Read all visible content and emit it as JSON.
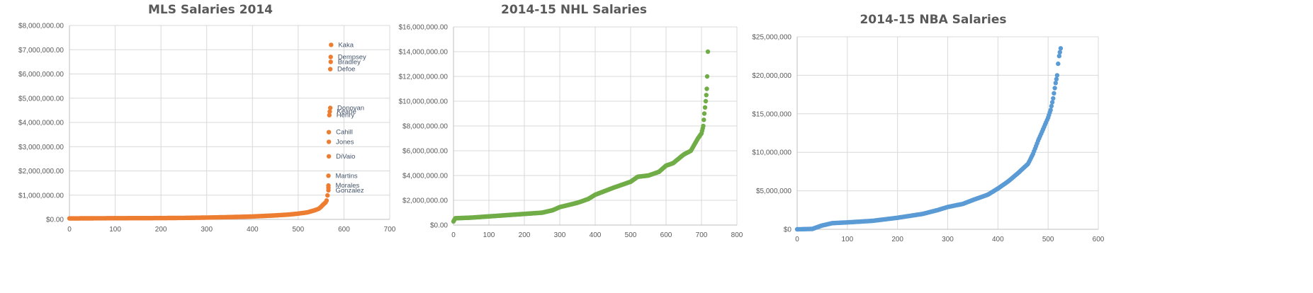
{
  "chart_data": [
    {
      "type": "scatter",
      "title": "MLS Salaries 2014",
      "xlabel": "",
      "ylabel": "",
      "xlim": [
        0,
        700
      ],
      "ylim": [
        0,
        8000000
      ],
      "x_ticks": [
        "0",
        "100",
        "200",
        "300",
        "400",
        "500",
        "600",
        "700"
      ],
      "y_ticks": [
        "$0.00",
        "$1,000,000.00",
        "$2,000,000.00",
        "$3,000,000.00",
        "$4,000,000.00",
        "$5,000,000.00",
        "$6,000,000.00",
        "$7,000,000.00",
        "$8,000,000.00"
      ],
      "grid": true,
      "color": "#ed7d31",
      "points": [
        [
          0,
          40000
        ],
        [
          50,
          45000
        ],
        [
          100,
          50000
        ],
        [
          150,
          52000
        ],
        [
          200,
          55000
        ],
        [
          250,
          62000
        ],
        [
          300,
          75000
        ],
        [
          350,
          95000
        ],
        [
          400,
          120000
        ],
        [
          450,
          165000
        ],
        [
          480,
          200000
        ],
        [
          500,
          240000
        ],
        [
          520,
          290000
        ],
        [
          535,
          370000
        ],
        [
          545,
          440000
        ],
        [
          550,
          520000
        ],
        [
          555,
          620000
        ],
        [
          560,
          700000
        ],
        [
          562,
          780000
        ],
        [
          566,
          1200000
        ],
        [
          566,
          1300000
        ],
        [
          566,
          1400000
        ],
        [
          566,
          1800000
        ],
        [
          567,
          2600000
        ],
        [
          567,
          3200000
        ],
        [
          567,
          3600000
        ],
        [
          568,
          4300000
        ],
        [
          569,
          4450000
        ],
        [
          570,
          4600000
        ],
        [
          570,
          6200000
        ],
        [
          571,
          6500000
        ],
        [
          571,
          6700000
        ],
        [
          572,
          7200000
        ]
      ],
      "annotations": [
        {
          "label": "Kaka",
          "x": 572,
          "y": 7200000
        },
        {
          "label": "Dempsey",
          "x": 571,
          "y": 6700000
        },
        {
          "label": "Bradley",
          "x": 571,
          "y": 6500000
        },
        {
          "label": "Defoe",
          "x": 570,
          "y": 6200000
        },
        {
          "label": "Donovan",
          "x": 570,
          "y": 4600000
        },
        {
          "label": "Keane",
          "x": 569,
          "y": 4450000
        },
        {
          "label": "Henry",
          "x": 568,
          "y": 4300000
        },
        {
          "label": "Cahill",
          "x": 567,
          "y": 3600000
        },
        {
          "label": "Jones",
          "x": 567,
          "y": 3200000
        },
        {
          "label": "DiVaio",
          "x": 567,
          "y": 2600000
        },
        {
          "label": "Martins",
          "x": 566,
          "y": 1800000
        },
        {
          "label": "Morales",
          "x": 566,
          "y": 1400000
        },
        {
          "label": "Gonzalez",
          "x": 566,
          "y": 1200000
        }
      ]
    },
    {
      "type": "scatter",
      "title": "2014-15 NHL Salaries",
      "xlabel": "",
      "ylabel": "",
      "xlim": [
        0,
        800
      ],
      "ylim": [
        0,
        16000000
      ],
      "x_ticks": [
        "0",
        "100",
        "200",
        "300",
        "400",
        "500",
        "600",
        "700",
        "800"
      ],
      "y_ticks": [
        "$0.00",
        "$2,000,000.00",
        "$4,000,000.00",
        "$6,000,000.00",
        "$8,000,000.00",
        "$10,000,000.00",
        "$12,000,000.00",
        "$14,000,000.00",
        "$16,000,000.00"
      ],
      "grid": true,
      "color": "#70ad47",
      "points": [
        [
          0,
          300000
        ],
        [
          5,
          550000
        ],
        [
          50,
          600000
        ],
        [
          100,
          700000
        ],
        [
          150,
          800000
        ],
        [
          200,
          900000
        ],
        [
          250,
          1000000
        ],
        [
          280,
          1200000
        ],
        [
          300,
          1450000
        ],
        [
          350,
          1800000
        ],
        [
          380,
          2100000
        ],
        [
          400,
          2450000
        ],
        [
          450,
          3000000
        ],
        [
          500,
          3500000
        ],
        [
          520,
          3900000
        ],
        [
          550,
          4000000
        ],
        [
          580,
          4300000
        ],
        [
          600,
          4800000
        ],
        [
          620,
          5000000
        ],
        [
          650,
          5700000
        ],
        [
          670,
          6000000
        ],
        [
          690,
          7000000
        ],
        [
          700,
          7400000
        ],
        [
          705,
          8000000
        ],
        [
          708,
          9000000
        ],
        [
          710,
          9500000
        ],
        [
          712,
          10000000
        ],
        [
          715,
          11000000
        ],
        [
          716,
          12000000
        ],
        [
          718,
          14000000
        ]
      ]
    },
    {
      "type": "scatter",
      "title": "2014-15 NBA Salaries",
      "xlabel": "",
      "ylabel": "",
      "xlim": [
        0,
        600
      ],
      "ylim": [
        0,
        25000000
      ],
      "x_ticks": [
        "0",
        "100",
        "200",
        "300",
        "400",
        "500",
        "600"
      ],
      "y_ticks": [
        "$0",
        "$5,000,000",
        "$10,000,000",
        "$15,000,000",
        "$20,000,000",
        "$25,000,000"
      ],
      "grid": true,
      "color": "#5b9bd5",
      "points": [
        [
          0,
          0
        ],
        [
          30,
          50000
        ],
        [
          50,
          500000
        ],
        [
          70,
          800000
        ],
        [
          100,
          900000
        ],
        [
          150,
          1100000
        ],
        [
          200,
          1500000
        ],
        [
          250,
          2000000
        ],
        [
          280,
          2500000
        ],
        [
          300,
          2900000
        ],
        [
          330,
          3300000
        ],
        [
          350,
          3800000
        ],
        [
          380,
          4500000
        ],
        [
          400,
          5300000
        ],
        [
          420,
          6200000
        ],
        [
          440,
          7300000
        ],
        [
          460,
          8500000
        ],
        [
          470,
          9800000
        ],
        [
          480,
          11500000
        ],
        [
          490,
          13000000
        ],
        [
          500,
          14500000
        ],
        [
          505,
          15500000
        ],
        [
          510,
          17000000
        ],
        [
          515,
          19000000
        ],
        [
          518,
          20000000
        ],
        [
          520,
          21500000
        ],
        [
          522,
          22500000
        ],
        [
          525,
          23500000
        ]
      ]
    }
  ]
}
